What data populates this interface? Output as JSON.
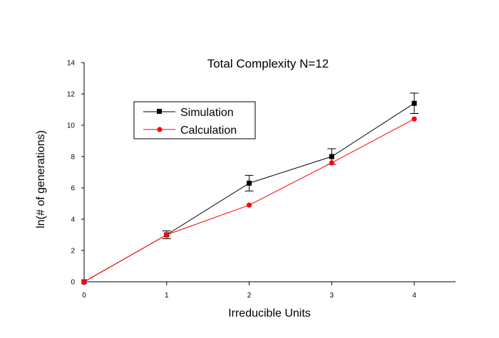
{
  "chart_data": {
    "type": "line",
    "title": "Total Complexity N=12",
    "xlabel": "Irreducible Units",
    "ylabel": "ln(# of generations)",
    "xlim": [
      0,
      4.5
    ],
    "ylim": [
      0,
      14
    ],
    "xticks": [
      0,
      1,
      2,
      3,
      4
    ],
    "yticks": [
      0,
      2,
      4,
      6,
      8,
      10,
      12,
      14
    ],
    "grid": false,
    "legend_position": "upper-left",
    "series": [
      {
        "name": "Simulation",
        "color": "#000000",
        "marker": "square",
        "x": [
          0,
          1,
          2,
          3,
          4
        ],
        "y": [
          0,
          3.0,
          6.3,
          8.0,
          11.4
        ],
        "error": [
          0,
          0.25,
          0.5,
          0.5,
          0.65
        ]
      },
      {
        "name": "Calculation",
        "color": "#ff0000",
        "marker": "circle",
        "x": [
          0,
          1,
          2,
          3,
          4
        ],
        "y": [
          0,
          3.0,
          4.9,
          7.6,
          10.4
        ]
      }
    ]
  }
}
